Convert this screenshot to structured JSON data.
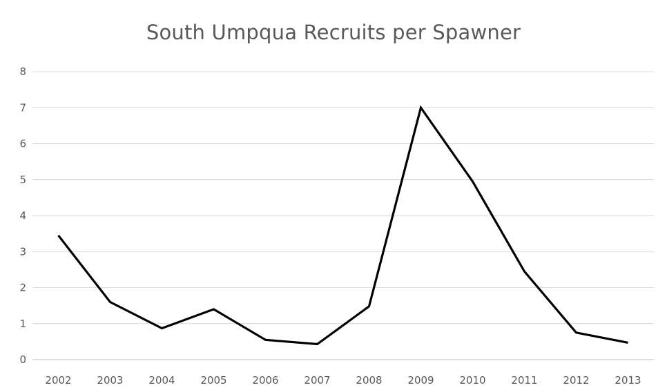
{
  "chart_data": {
    "type": "line",
    "title": "South Umpqua Recruits per Spawner",
    "xlabel": "",
    "ylabel": "",
    "categories": [
      "2002",
      "2003",
      "2004",
      "2005",
      "2006",
      "2007",
      "2008",
      "2009",
      "2010",
      "2011",
      "2012",
      "2013"
    ],
    "y_ticks": [
      "0",
      "1",
      "2",
      "3",
      "4",
      "5",
      "6",
      "7",
      "8"
    ],
    "ylim": [
      0,
      8
    ],
    "grid": true,
    "legend": "none",
    "series": [
      {
        "values": [
          3.45,
          1.6,
          0.87,
          1.4,
          0.55,
          0.43,
          1.48,
          7.0,
          4.95,
          2.45,
          0.75,
          0.47
        ],
        "color": "#000000"
      }
    ]
  },
  "colors": {
    "title": "#595959",
    "tick_labels": "#595959",
    "gridlines": "#d9d9d9",
    "series_line": "#000000"
  }
}
